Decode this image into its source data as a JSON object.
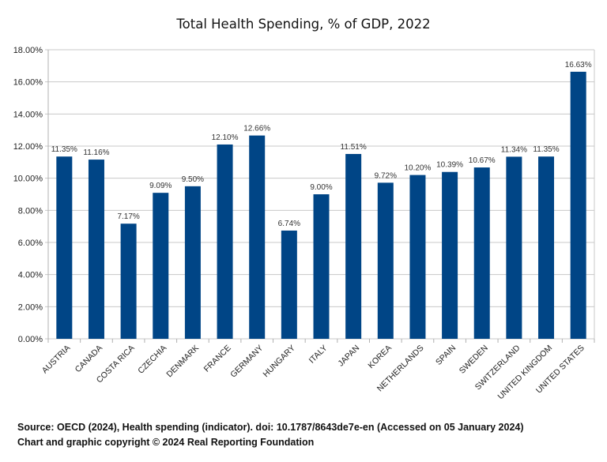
{
  "chart_data": {
    "type": "bar",
    "title": "Total Health Spending, % of GDP, 2022",
    "xlabel": "",
    "ylabel": "",
    "ylim": [
      0,
      18
    ],
    "yticks": [
      "0.00%",
      "2.00%",
      "4.00%",
      "6.00%",
      "8.00%",
      "10.00%",
      "12.00%",
      "14.00%",
      "16.00%",
      "18.00%"
    ],
    "grid": true,
    "bar_color": "#004586",
    "categories": [
      "AUSTRIA",
      "CANADA",
      "COSTA RICA",
      "CZECHIA",
      "DENMARK",
      "FRANCE",
      "GERMANY",
      "HUNGARY",
      "ITALY",
      "JAPAN",
      "KOREA",
      "NETHERLANDS",
      "SPAIN",
      "SWEDEN",
      "SWITZERLAND",
      "UNITED KINGDOM",
      "UNITED STATES"
    ],
    "values": [
      11.35,
      11.16,
      7.17,
      9.09,
      9.5,
      12.1,
      12.66,
      6.74,
      9.0,
      11.51,
      9.72,
      10.2,
      10.39,
      10.67,
      11.34,
      11.35,
      16.63
    ],
    "data_labels": [
      "11.35%",
      "11.16%",
      "7.17%",
      "9.09%",
      "9.50%",
      "12.10%",
      "12.66%",
      "6.74%",
      "9.00%",
      "11.51%",
      "9.72%",
      "10.20%",
      "10.39%",
      "10.67%",
      "11.34%",
      "11.35%",
      "16.63%"
    ]
  },
  "footer": {
    "source": "Source: OECD (2024), Health spending (indicator). doi: 10.1787/8643de7e-en (Accessed on 05 January 2024)",
    "copyright": "Chart and graphic copyright © 2024 Real Reporting Foundation"
  }
}
